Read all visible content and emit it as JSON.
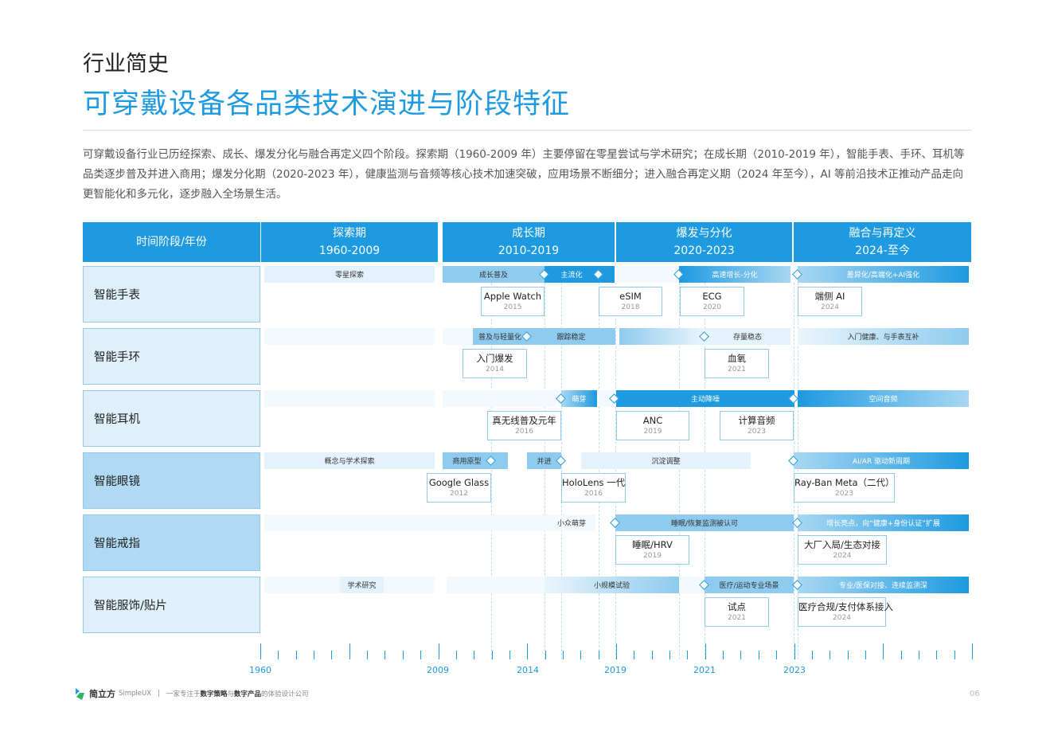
{
  "header": {
    "kicker": "行业简史",
    "title": "可穿戴设备各品类技术演进与阶段特征"
  },
  "intro": "可穿戴设备行业已历经探索、成长、爆发分化与融合再定义四个阶段。探索期（1960-2009 年）主要停留在零星尝试与学术研究；在成长期（2010-2019 年），智能手表、手环、耳机等品类逐步普及并进入商用；爆发分化期（2020-2023 年），健康监测与音频等核心技术加速突破，应用场景不断细分；进入融合再定义期（2024 年至今），AI 等前沿技术正推动产品走向更智能化和多元化，逐步融入全场景生活。",
  "table_header": {
    "corner": "时间阶段/年份",
    "phases": [
      {
        "name": "探索期",
        "years": "1960-2009"
      },
      {
        "name": "成长期",
        "years": "2010-2019"
      },
      {
        "name": "爆发与分化",
        "years": "2020-2023"
      },
      {
        "name": "融合与再定义",
        "years": "2024-至今"
      }
    ]
  },
  "rows": [
    {
      "label": "智能手表",
      "bars": [
        "零星探索",
        "成长普及",
        "主流化",
        "高速增长-分化",
        "差异化/高端化+AI强化"
      ],
      "cards": [
        {
          "title": "Apple Watch",
          "year": "2015"
        },
        {
          "title": "eSIM",
          "year": "2018"
        },
        {
          "title": "ECG",
          "year": "2020"
        },
        {
          "title": "端侧 AI",
          "year": "2024"
        }
      ]
    },
    {
      "label": "智能手环",
      "bars": [
        "普及与轻量化",
        "跟踪稳定",
        "存量稳态",
        "入门健康、与手表互补"
      ],
      "cards": [
        {
          "title": "入门爆发",
          "year": "2014"
        },
        {
          "title": "血氧",
          "year": "2021"
        }
      ]
    },
    {
      "label": "智能耳机",
      "bars": [
        "萌芽",
        "主动降噪",
        "空间音频"
      ],
      "cards": [
        {
          "title": "真无线普及元年",
          "year": "2016"
        },
        {
          "title": "ANC",
          "year": "2019"
        },
        {
          "title": "计算音频",
          "year": "2023"
        }
      ]
    },
    {
      "label": "智能眼镜",
      "bars": [
        "概念与学术探索",
        "商用原型",
        "并进",
        "沉淀调整",
        "AI/AR 驱动新周期"
      ],
      "cards": [
        {
          "title": "Google Glass",
          "year": "2012"
        },
        {
          "title": "HoloLens 一代",
          "year": "2016"
        },
        {
          "title": "Ray-Ban Meta（二代）",
          "year": "2023"
        }
      ]
    },
    {
      "label": "智能戒指",
      "bars": [
        "小众萌芽",
        "睡眠/恢复监测被认可",
        "增长亮点，向“健康+身份认证”扩展"
      ],
      "cards": [
        {
          "title": "睡眠/HRV",
          "year": "2019"
        },
        {
          "title": "大厂入局/生态对接",
          "year": "2024"
        }
      ]
    },
    {
      "label": "智能服饰/贴片",
      "bars": [
        "学术研究",
        "小规模试验",
        "医疗/运动专业场景",
        "专业/医保对接、连续监测深"
      ],
      "cards": [
        {
          "title": "试点",
          "year": "2021"
        },
        {
          "title": "医疗合规/支付体系接入",
          "year": "2024"
        }
      ]
    }
  ],
  "axis": {
    "labels": [
      "1960",
      "2009",
      "2014",
      "2019",
      "2021",
      "2023"
    ]
  },
  "footer": {
    "brand": "简立方",
    "brand_en": "SimpleUX",
    "sep": "|",
    "slogan_pre": "一家专注于",
    "slogan_b1": "数字策略",
    "slogan_mid": "与",
    "slogan_b2": "数字产品",
    "slogan_post": "的体验设计公司",
    "page": "06"
  },
  "colors": {
    "accent": "#1e9ae0",
    "mid": "#8ecbee",
    "light": "#e4f2fb"
  }
}
